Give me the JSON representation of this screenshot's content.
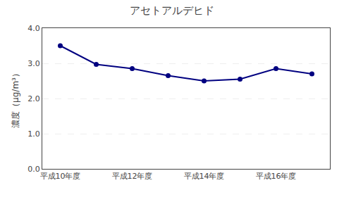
{
  "chart_data": {
    "type": "line",
    "title": "アセトアルデヒド",
    "ylabel": "濃度（μg/m³）",
    "categories": [
      "平成10年度",
      null,
      "平成12年度",
      null,
      "平成14年度",
      null,
      "平成16年度",
      null
    ],
    "values": [
      3.5,
      2.97,
      2.85,
      2.65,
      2.5,
      2.55,
      2.85,
      2.7
    ],
    "color": "#000080",
    "marker": "o",
    "ylim": [
      0.0,
      4.0
    ],
    "yticks": [
      {
        "value": 0.0,
        "label": "0.0"
      },
      {
        "value": 1.0,
        "label": "1.0"
      },
      {
        "value": 2.0,
        "label": "2.0"
      },
      {
        "value": 3.0,
        "label": "3.0"
      },
      {
        "value": 4.0,
        "label": "4.0"
      }
    ],
    "grid": true
  }
}
